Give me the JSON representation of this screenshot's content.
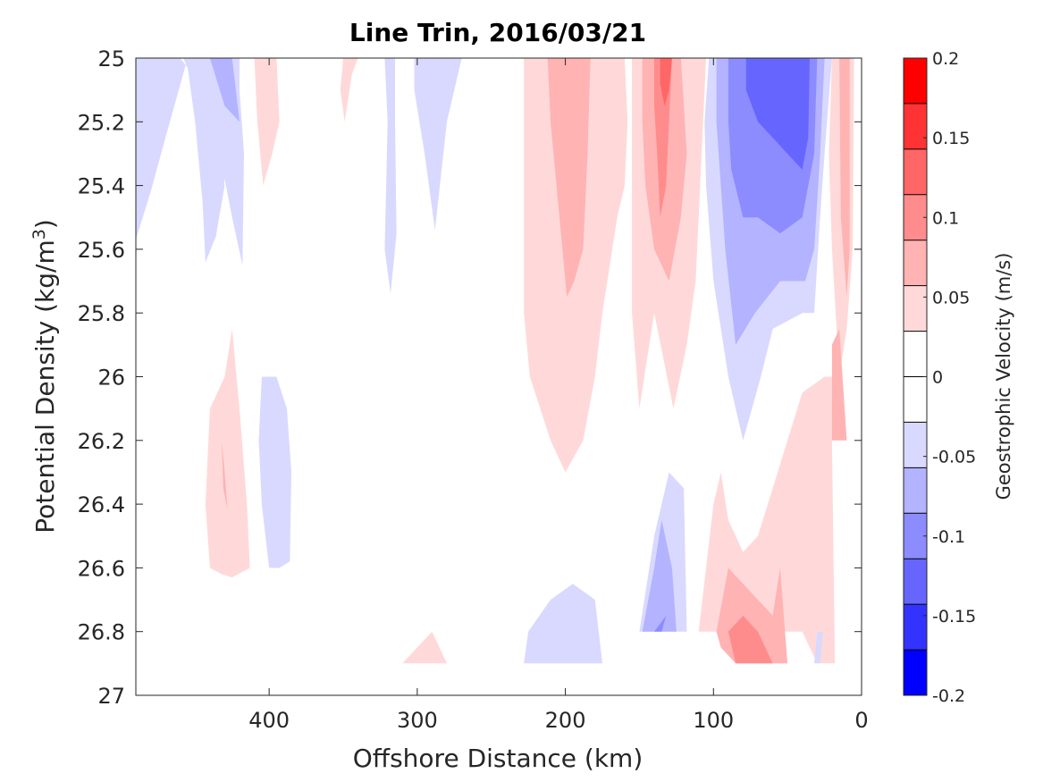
{
  "chart_data": {
    "type": "heatmap",
    "subtype": "filled-contour",
    "title": "Line Trin, 2016/03/21",
    "xlabel": "Offshore Distance (km)",
    "ylabel_prefix": "Potential Density (kg/m",
    "ylabel_sup": "3",
    "ylabel_suffix": ")",
    "xlim": [
      490,
      0
    ],
    "ylim": [
      25,
      27
    ],
    "x_reversed": true,
    "y_reversed": true,
    "xticks": [
      400,
      300,
      200,
      100,
      0
    ],
    "yticks": [
      25,
      25.2,
      25.4,
      25.6,
      25.8,
      26,
      26.2,
      26.4,
      26.6,
      26.8,
      27
    ],
    "xtick_labels": [
      "400",
      "300",
      "200",
      "100",
      "0"
    ],
    "ytick_labels": [
      "25",
      "25.2",
      "25.4",
      "25.6",
      "25.8",
      "26",
      "26.2",
      "26.4",
      "26.6",
      "26.8",
      "27"
    ],
    "grid": false,
    "colorbar": {
      "label": "Geostrophic Velocity (m/s)",
      "range": [
        -0.2,
        0.2
      ],
      "ticks": [
        0.2,
        0.15,
        0.1,
        0.05,
        0,
        -0.05,
        -0.1,
        -0.15,
        -0.2
      ],
      "tick_labels": [
        "0.2",
        "0.15",
        "0.1",
        "0.05",
        "0",
        "-0.05",
        "-0.1",
        "-0.15",
        "-0.2"
      ],
      "colors_top_to_bottom": [
        "#ff0000",
        "#ff3333",
        "#ff6666",
        "#ff8c8c",
        "#ffb3b3",
        "#ffd9d9",
        "#ffffff",
        "#ffffff",
        "#d9d9ff",
        "#b3b3ff",
        "#8c8cff",
        "#6666ff",
        "#3333ff",
        "#0000ff"
      ]
    },
    "regions": [
      {
        "level": -0.03,
        "points": [
          [
            490,
            25
          ],
          [
            458,
            25
          ],
          [
            455,
            25.03
          ],
          [
            450,
            25.2
          ],
          [
            445,
            25.45
          ],
          [
            443,
            25.64
          ],
          [
            436,
            25.56
          ],
          [
            430,
            25.4
          ],
          [
            440,
            25.15
          ],
          [
            445,
            25.0
          ],
          [
            490,
            25.0
          ],
          [
            490,
            25.57
          ],
          [
            485,
            25.4
          ],
          [
            477,
            25.3
          ],
          [
            470,
            25.15
          ],
          [
            490,
            25.05
          ]
        ]
      },
      {
        "level": -0.03,
        "points": [
          [
            490,
            25
          ],
          [
            460,
            25
          ],
          [
            455,
            25.03
          ],
          [
            447,
            25.2
          ],
          [
            445,
            25.3
          ],
          [
            443,
            25.64
          ],
          [
            436,
            25.56
          ],
          [
            430,
            25.38
          ],
          [
            425,
            25.5
          ],
          [
            418,
            25.65
          ],
          [
            417,
            25.3
          ],
          [
            420,
            25.1
          ],
          [
            420,
            25.0
          ],
          [
            455,
            25.0
          ],
          [
            470,
            25.25
          ],
          [
            480,
            25.42
          ],
          [
            490,
            25.57
          ]
        ]
      },
      {
        "level": -0.07,
        "points": [
          [
            440,
            25
          ],
          [
            425,
            25
          ],
          [
            420,
            25.2
          ],
          [
            430,
            25.15
          ]
        ]
      },
      {
        "level": -0.03,
        "points": [
          [
            332,
            25
          ],
          [
            322,
            25
          ],
          [
            320,
            25.2
          ],
          [
            321,
            25.4
          ],
          [
            322,
            25.6
          ],
          [
            318,
            25.74
          ],
          [
            314,
            25.55
          ],
          [
            315,
            25.2
          ],
          [
            315,
            25
          ]
        ]
      },
      {
        "level": -0.03,
        "points": [
          [
            302,
            25
          ],
          [
            270,
            25
          ],
          [
            280,
            25.2
          ],
          [
            288,
            25.54
          ],
          [
            295,
            25.3
          ],
          [
            302,
            25.1
          ]
        ]
      },
      {
        "level": 0.03,
        "points": [
          [
            410,
            25
          ],
          [
            395,
            25
          ],
          [
            393,
            25.2
          ],
          [
            398,
            25.3
          ],
          [
            404,
            25.4
          ],
          [
            408,
            25.2
          ]
        ]
      },
      {
        "level": 0.03,
        "points": [
          [
            350,
            25
          ],
          [
            340,
            25
          ],
          [
            344,
            25.05
          ],
          [
            349,
            25.2
          ],
          [
            352,
            25.1
          ]
        ]
      },
      {
        "level": 0.03,
        "points": [
          [
            228,
            25
          ],
          [
            160,
            25
          ],
          [
            158,
            25.2
          ],
          [
            160,
            25.4
          ],
          [
            165,
            25.5
          ],
          [
            175,
            25.8
          ],
          [
            180,
            26.0
          ],
          [
            188,
            26.2
          ],
          [
            200,
            26.3
          ],
          [
            210,
            26.2
          ],
          [
            224,
            26.0
          ],
          [
            228,
            25.8
          ],
          [
            228,
            25.2
          ]
        ]
      },
      {
        "level": 0.07,
        "points": [
          [
            212,
            25
          ],
          [
            183,
            25
          ],
          [
            185,
            25.3
          ],
          [
            188,
            25.6
          ],
          [
            194,
            25.7
          ],
          [
            199,
            25.75
          ],
          [
            205,
            25.45
          ],
          [
            210,
            25.2
          ]
        ]
      },
      {
        "level": 0.03,
        "points": [
          [
            155,
            25
          ],
          [
            105,
            25
          ],
          [
            108,
            25.3
          ],
          [
            110,
            25.5
          ],
          [
            112,
            25.7
          ],
          [
            118,
            25.9
          ],
          [
            127,
            26.1
          ],
          [
            140,
            25.8
          ],
          [
            150,
            26.1
          ],
          [
            155,
            25.8
          ],
          [
            155,
            25.2
          ]
        ]
      },
      {
        "level": 0.07,
        "points": [
          [
            148,
            25
          ],
          [
            122,
            25
          ],
          [
            118,
            25.3
          ],
          [
            122,
            25.5
          ],
          [
            130,
            25.7
          ],
          [
            140,
            25.6
          ],
          [
            146,
            25.4
          ],
          [
            148,
            25.2
          ]
        ]
      },
      {
        "level": 0.1,
        "points": [
          [
            140,
            25
          ],
          [
            128,
            25
          ],
          [
            130,
            25.2
          ],
          [
            132,
            25.4
          ],
          [
            136,
            25.5
          ],
          [
            138,
            25.3
          ],
          [
            140,
            25.15
          ]
        ]
      },
      {
        "level": 0.13,
        "points": [
          [
            136,
            25
          ],
          [
            128,
            25
          ],
          [
            130,
            25.1
          ],
          [
            133,
            25.15
          ],
          [
            136,
            25.08
          ]
        ]
      },
      {
        "level": -0.03,
        "points": [
          [
            103,
            25
          ],
          [
            20,
            25
          ],
          [
            25,
            25.3
          ],
          [
            28,
            25.5
          ],
          [
            32,
            25.8
          ],
          [
            40,
            25.8
          ],
          [
            60,
            25.85
          ],
          [
            68,
            26.0
          ],
          [
            80,
            26.2
          ],
          [
            90,
            26.0
          ],
          [
            100,
            25.7
          ],
          [
            105,
            25.4
          ],
          [
            106,
            25.2
          ]
        ]
      },
      {
        "level": -0.07,
        "points": [
          [
            98,
            25
          ],
          [
            25,
            25
          ],
          [
            28,
            25.3
          ],
          [
            32,
            25.6
          ],
          [
            38,
            25.7
          ],
          [
            55,
            25.7
          ],
          [
            72,
            25.8
          ],
          [
            85,
            25.9
          ],
          [
            92,
            25.6
          ],
          [
            98,
            25.2
          ]
        ]
      },
      {
        "level": -0.1,
        "points": [
          [
            90,
            25
          ],
          [
            30,
            25
          ],
          [
            32,
            25.3
          ],
          [
            40,
            25.5
          ],
          [
            55,
            25.55
          ],
          [
            70,
            25.5
          ],
          [
            80,
            25.5
          ],
          [
            88,
            25.35
          ],
          [
            90,
            25.2
          ]
        ]
      },
      {
        "level": -0.13,
        "points": [
          [
            78,
            25
          ],
          [
            35,
            25
          ],
          [
            36,
            25.25
          ],
          [
            40,
            25.35
          ],
          [
            50,
            25.3
          ],
          [
            60,
            25.25
          ],
          [
            70,
            25.2
          ],
          [
            78,
            25.1
          ]
        ]
      },
      {
        "level": -0.17,
        "points": [
          [
            55,
            25
          ],
          [
            40,
            25
          ],
          [
            42,
            25.13
          ],
          [
            48,
            25.15
          ],
          [
            52,
            25.1
          ]
        ]
      },
      {
        "level": 0.03,
        "points": [
          [
            20,
            25
          ],
          [
            5,
            25
          ],
          [
            6,
            25.6
          ],
          [
            10,
            25.85
          ],
          [
            15,
            26.0
          ],
          [
            20,
            25.6
          ],
          [
            22,
            25.3
          ]
        ]
      },
      {
        "level": 0.07,
        "points": [
          [
            15,
            25
          ],
          [
            8,
            25
          ],
          [
            8,
            25.6
          ],
          [
            10,
            25.75
          ],
          [
            14,
            25.5
          ]
        ]
      },
      {
        "level": 0.03,
        "points": [
          [
            440,
            26.1
          ],
          [
            430,
            26.0
          ],
          [
            425,
            25.85
          ],
          [
            420,
            26.1
          ],
          [
            415,
            26.4
          ],
          [
            413,
            26.6
          ],
          [
            425,
            26.63
          ],
          [
            432,
            26.62
          ],
          [
            440,
            26.6
          ],
          [
            443,
            26.4
          ]
        ]
      },
      {
        "level": 0.07,
        "points": [
          [
            432,
            26.2
          ],
          [
            430,
            26.3
          ],
          [
            428,
            26.42
          ],
          [
            431,
            26.35
          ]
        ]
      },
      {
        "level": -0.03,
        "points": [
          [
            405,
            26.0
          ],
          [
            395,
            26.0
          ],
          [
            388,
            26.1
          ],
          [
            385,
            26.3
          ],
          [
            386,
            26.58
          ],
          [
            393,
            26.6
          ],
          [
            400,
            26.6
          ],
          [
            405,
            26.4
          ],
          [
            407,
            26.2
          ]
        ]
      },
      {
        "level": 0.03,
        "points": [
          [
            310,
            26.9
          ],
          [
            290,
            26.8
          ],
          [
            280,
            26.9
          ]
        ]
      },
      {
        "level": -0.03,
        "points": [
          [
            228,
            26.9
          ],
          [
            225,
            26.8
          ],
          [
            210,
            26.7
          ],
          [
            195,
            26.65
          ],
          [
            180,
            26.7
          ],
          [
            175,
            26.9
          ]
        ]
      },
      {
        "level": -0.03,
        "points": [
          [
            158,
            26.9
          ],
          [
            150,
            26.8
          ],
          [
            140,
            26.5
          ],
          [
            130,
            26.3
          ],
          [
            120,
            26.35
          ],
          [
            118,
            26.8
          ],
          [
            120,
            26.8
          ],
          [
            125,
            26.8
          ],
          [
            140,
            26.8
          ],
          [
            150,
            26.8
          ]
        ]
      },
      {
        "level": -0.07,
        "points": [
          [
            148,
            26.8
          ],
          [
            140,
            26.6
          ],
          [
            135,
            26.45
          ],
          [
            128,
            26.6
          ],
          [
            125,
            26.8
          ]
        ]
      },
      {
        "level": -0.1,
        "points": [
          [
            140,
            26.8
          ],
          [
            135,
            26.8
          ],
          [
            132,
            26.75
          ]
        ]
      },
      {
        "level": 0.03,
        "points": [
          [
            110,
            26.8
          ],
          [
            100,
            26.4
          ],
          [
            95,
            26.3
          ],
          [
            90,
            26.45
          ],
          [
            80,
            26.55
          ],
          [
            70,
            26.5
          ],
          [
            60,
            26.35
          ],
          [
            50,
            26.2
          ],
          [
            40,
            26.05
          ],
          [
            25,
            26.0
          ],
          [
            20,
            26.0
          ],
          [
            20,
            26.2
          ],
          [
            18,
            26.9
          ],
          [
            30,
            26.9
          ],
          [
            40,
            26.8
          ],
          [
            60,
            26.8
          ],
          [
            100,
            26.8
          ]
        ]
      },
      {
        "level": 0.07,
        "points": [
          [
            98,
            26.8
          ],
          [
            90,
            26.6
          ],
          [
            80,
            26.65
          ],
          [
            70,
            26.7
          ],
          [
            60,
            26.75
          ],
          [
            55,
            26.6
          ],
          [
            50,
            26.9
          ],
          [
            85,
            26.9
          ],
          [
            95,
            26.85
          ]
        ]
      },
      {
        "level": 0.1,
        "points": [
          [
            90,
            26.8
          ],
          [
            80,
            26.75
          ],
          [
            70,
            26.8
          ],
          [
            60,
            26.9
          ],
          [
            85,
            26.9
          ]
        ]
      },
      {
        "level": 0.07,
        "points": [
          [
            20,
            26.0
          ],
          [
            20,
            25.9
          ],
          [
            15,
            25.85
          ],
          [
            10,
            26.2
          ],
          [
            20,
            26.2
          ]
        ]
      },
      {
        "level": -0.03,
        "points": [
          [
            28,
            26.9
          ],
          [
            26,
            26.8
          ],
          [
            30,
            26.8
          ],
          [
            32,
            26.9
          ]
        ]
      }
    ]
  }
}
